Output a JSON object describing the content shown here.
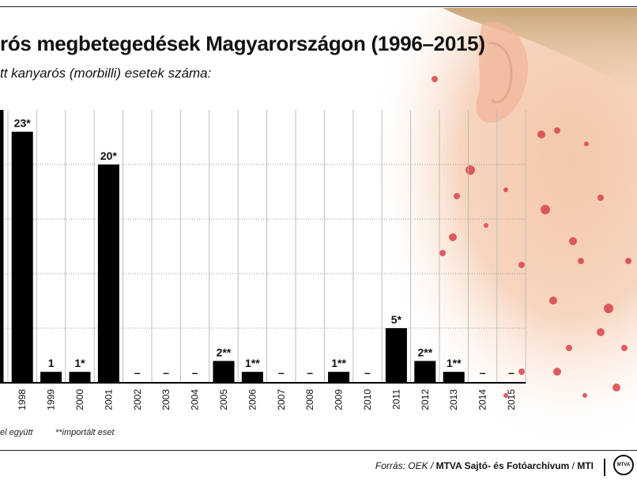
{
  "title": "rós megbetegedések Magyarországon (1996–2015)",
  "subtitle": "tt kanyarós (morbilli) esetek száma:",
  "chart_data": {
    "type": "bar",
    "categories": [
      "1998",
      "1999",
      "2000",
      "2001",
      "2002",
      "2003",
      "2004",
      "2005",
      "2006",
      "2007",
      "2008",
      "2009",
      "2010",
      "2011",
      "2012",
      "2013",
      "2014",
      "2015"
    ],
    "values": [
      23,
      1,
      1,
      20,
      0,
      0,
      0,
      2,
      1,
      0,
      0,
      1,
      0,
      5,
      2,
      1,
      0,
      0
    ],
    "labels": [
      "23*",
      "1",
      "1*",
      "20*",
      "–",
      "–",
      "–",
      "2**",
      "1**",
      "–",
      "–",
      "1**",
      "–",
      "5*",
      "2**",
      "1**",
      "–",
      "–"
    ],
    "ylim": [
      0,
      25
    ],
    "grid": true
  },
  "footnotes": {
    "left": "el együtt",
    "imported": "**importált eset"
  },
  "source": {
    "label": "Forrás: OEK /",
    "agency": "MTVA Sajtó- és Fotóarchívum",
    "sep": "/",
    "mti": "MTI"
  },
  "logo_text": "MTVA"
}
